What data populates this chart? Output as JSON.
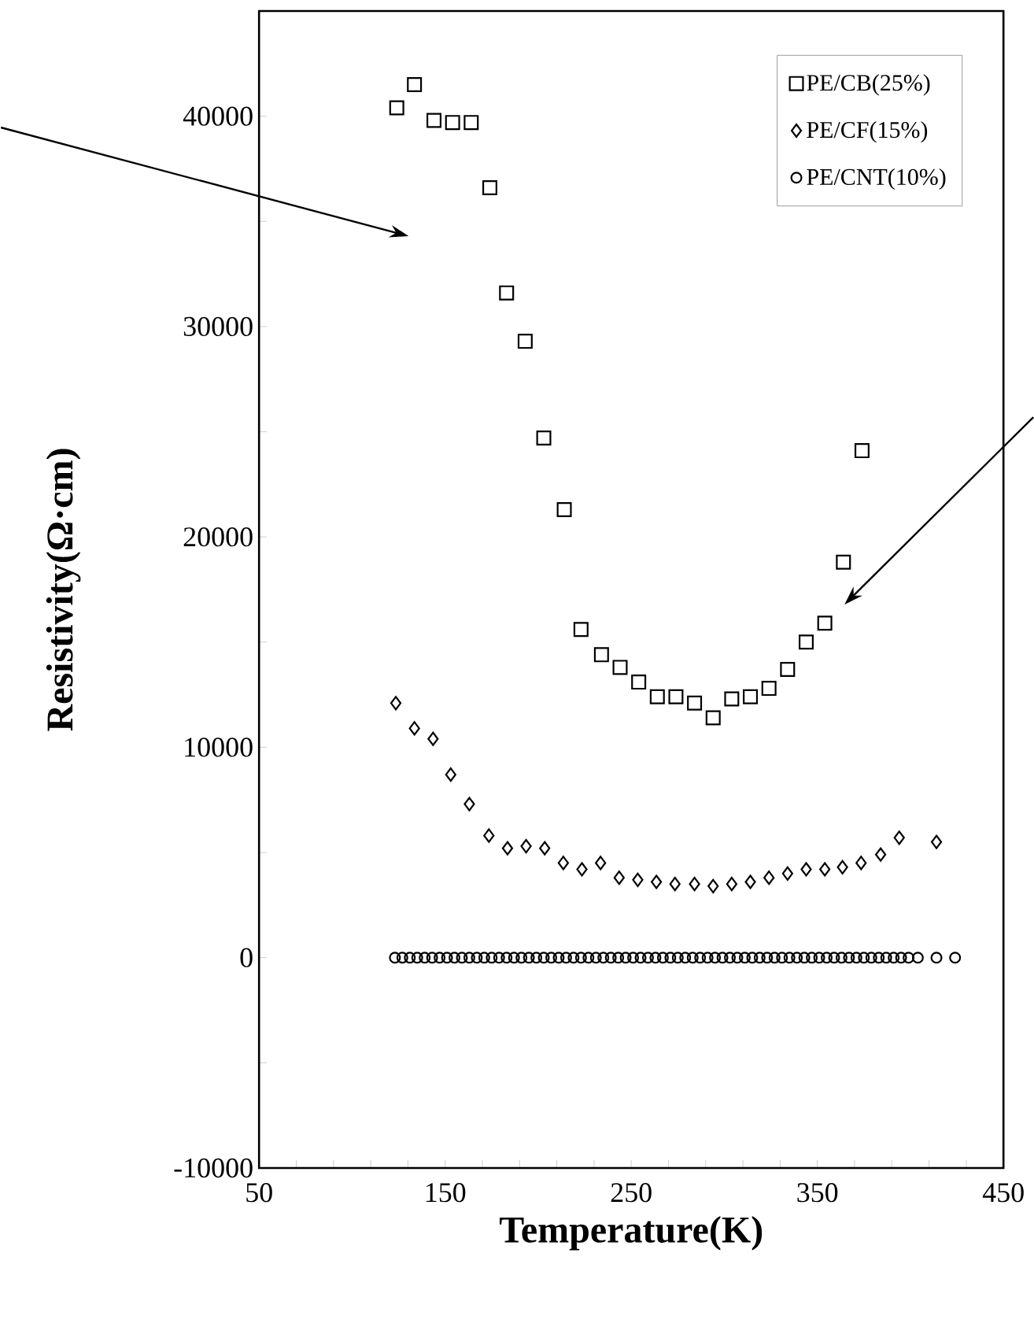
{
  "chart_data": {
    "type": "scatter",
    "xlabel": "Temperature(K)",
    "ylabel": "Resistivity(Ω·cm)",
    "xlim": [
      50,
      450
    ],
    "ylim": [
      -10000,
      45000
    ],
    "xticks": [
      50,
      {
        "value": 70,
        "label": null
      },
      {
        "value": 90,
        "label": null
      },
      {
        "value": 110,
        "label": null
      },
      {
        "value": 130,
        "label": null
      },
      150,
      {
        "value": 170,
        "label": null
      },
      {
        "value": 190,
        "label": null
      },
      {
        "value": 210,
        "label": null
      },
      {
        "value": 230,
        "label": null
      },
      250,
      {
        "value": 270,
        "label": null
      },
      {
        "value": 290,
        "label": null
      },
      {
        "value": 310,
        "label": null
      },
      {
        "value": 330,
        "label": null
      },
      350,
      {
        "value": 370,
        "label": null
      },
      {
        "value": 390,
        "label": null
      },
      {
        "value": 410,
        "label": null
      },
      {
        "value": 430,
        "label": null
      },
      450
    ],
    "yticks": [
      -10000,
      {
        "value": -5000,
        "label": null
      },
      0,
      {
        "value": 5000,
        "label": null
      },
      10000,
      {
        "value": 15000,
        "label": null
      },
      20000,
      {
        "value": 25000,
        "label": null
      },
      30000,
      {
        "value": 35000,
        "label": null
      },
      40000
    ],
    "grid": false,
    "legend": "top right",
    "series": [
      {
        "name": "PE/CB(25%)",
        "color": "#000000",
        "marker": "square",
        "x": [
          124,
          133.5,
          144,
          154,
          164,
          174,
          183,
          193,
          203,
          214,
          223,
          234,
          244,
          254,
          264,
          274,
          284,
          294,
          304,
          314,
          324,
          334,
          344,
          354,
          364,
          374
        ],
        "values": [
          40400,
          41500,
          39800,
          39700,
          39700,
          36600,
          31600,
          29300,
          24700,
          21300,
          15600,
          14400,
          13800,
          13100,
          12400,
          12400,
          12100,
          11400,
          12300,
          12400,
          12800,
          13700,
          15000,
          15900,
          18800,
          24100
        ]
      },
      {
        "name": "PE/CF(15%)",
        "color": "#000000",
        "marker": "diamond",
        "x": [
          123.5,
          133.5,
          143.5,
          153,
          163,
          173.5,
          183.5,
          193.5,
          203.5,
          213.5,
          223.5,
          233.5,
          243.5,
          253.5,
          263.5,
          273.5,
          284,
          294,
          304,
          314,
          324,
          334,
          344,
          354,
          363.5,
          373.5,
          384,
          394,
          414
        ],
        "values": [
          12100,
          10900,
          10400,
          8700,
          7300,
          5800,
          5200,
          5300,
          5200,
          4500,
          4200,
          4500,
          3800,
          3700,
          3600,
          3500,
          3500,
          3400,
          3500,
          3600,
          3800,
          4000,
          4200,
          4200,
          4300,
          4500,
          4900,
          5700,
          5500
        ]
      },
      {
        "name": "PE/CNT(10%)",
        "color": "#000000",
        "marker": "circle",
        "x": [
          123,
          127,
          131,
          135,
          139,
          143,
          147,
          151,
          155,
          159,
          163,
          167,
          171,
          175,
          179,
          183,
          187,
          191,
          195,
          199,
          203,
          207,
          211,
          215,
          219,
          223,
          227,
          231,
          235,
          239,
          243,
          247,
          251,
          255,
          259,
          263,
          267,
          271,
          275,
          279,
          283,
          287,
          291,
          295,
          299,
          303,
          307,
          311,
          315,
          319,
          323,
          327,
          331,
          335,
          339,
          343,
          347,
          351,
          355,
          359,
          363,
          367,
          371,
          375,
          379,
          383,
          387,
          391,
          395,
          399,
          404,
          414,
          424
        ],
        "values": [
          0,
          0,
          0,
          0,
          0,
          0,
          0,
          0,
          0,
          0,
          0,
          0,
          0,
          0,
          0,
          0,
          0,
          0,
          0,
          0,
          0,
          0,
          0,
          0,
          0,
          0,
          0,
          0,
          0,
          0,
          0,
          0,
          0,
          0,
          0,
          0,
          0,
          0,
          0,
          0,
          0,
          0,
          0,
          0,
          0,
          0,
          0,
          0,
          0,
          0,
          0,
          0,
          0,
          0,
          0,
          0,
          0,
          0,
          0,
          0,
          0,
          0,
          0,
          0,
          0,
          0,
          0,
          0,
          0,
          0,
          0,
          0,
          0
        ]
      }
    ]
  }
}
